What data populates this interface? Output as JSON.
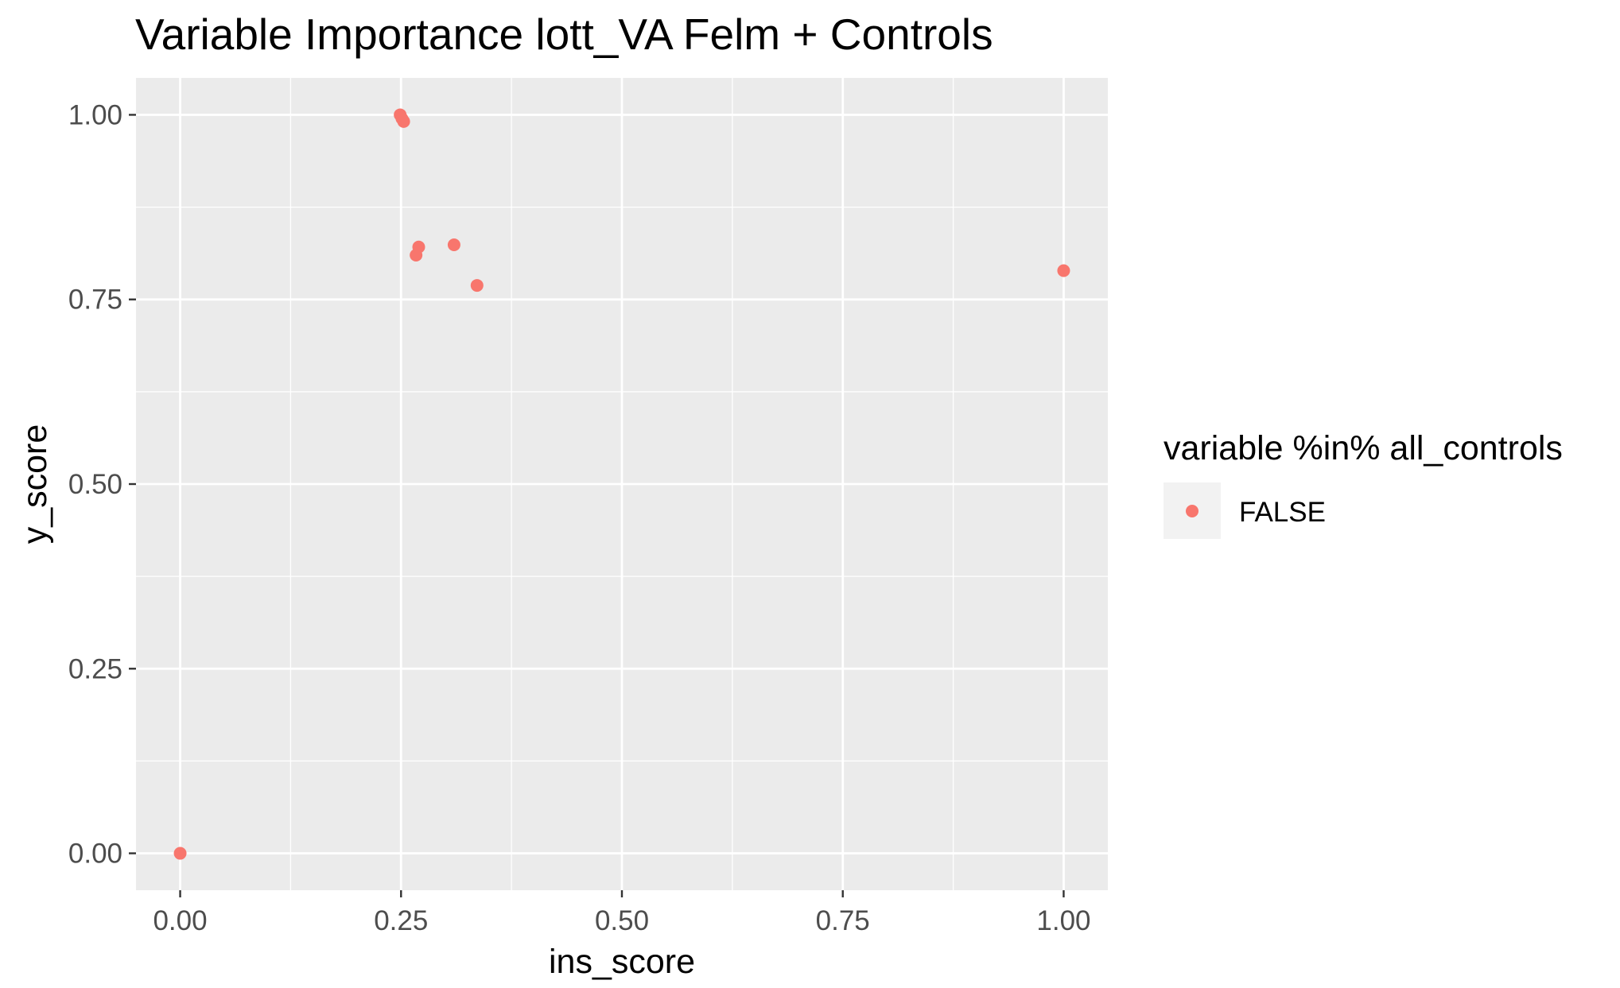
{
  "chart_data": {
    "type": "scatter",
    "title": "Variable Importance lott_VA Felm + Controls",
    "xlabel": "ins_score",
    "ylabel": "y_score",
    "xlim": [
      -0.05,
      1.05
    ],
    "ylim": [
      -0.05,
      1.05
    ],
    "x_ticks": [
      0.0,
      0.25,
      0.5,
      0.75,
      1.0
    ],
    "x_tick_labels": [
      "0.00",
      "0.25",
      "0.50",
      "0.75",
      "1.00"
    ],
    "y_ticks": [
      0.0,
      0.25,
      0.5,
      0.75,
      1.0
    ],
    "y_tick_labels": [
      "0.00",
      "0.25",
      "0.50",
      "0.75",
      "1.00"
    ],
    "grid": true,
    "legend": {
      "title": "variable %in% all_controls",
      "placement": "right",
      "entries": [
        {
          "label": "FALSE",
          "color": "#F8766D"
        }
      ]
    },
    "series": [
      {
        "name": "FALSE",
        "color": "#F8766D",
        "points": [
          {
            "x": 0.0,
            "y": 0.0
          },
          {
            "x": 0.249,
            "y": 1.0
          },
          {
            "x": 0.251,
            "y": 0.995
          },
          {
            "x": 0.253,
            "y": 0.991
          },
          {
            "x": 0.267,
            "y": 0.81
          },
          {
            "x": 0.27,
            "y": 0.821
          },
          {
            "x": 0.31,
            "y": 0.824
          },
          {
            "x": 0.336,
            "y": 0.769
          },
          {
            "x": 1.0,
            "y": 0.789
          }
        ]
      }
    ]
  },
  "style": {
    "panel_background": "#EBEBEB",
    "grid_color": "#FFFFFF",
    "tick_color": "#333333",
    "legend_key_background": "#F2F2F2"
  }
}
